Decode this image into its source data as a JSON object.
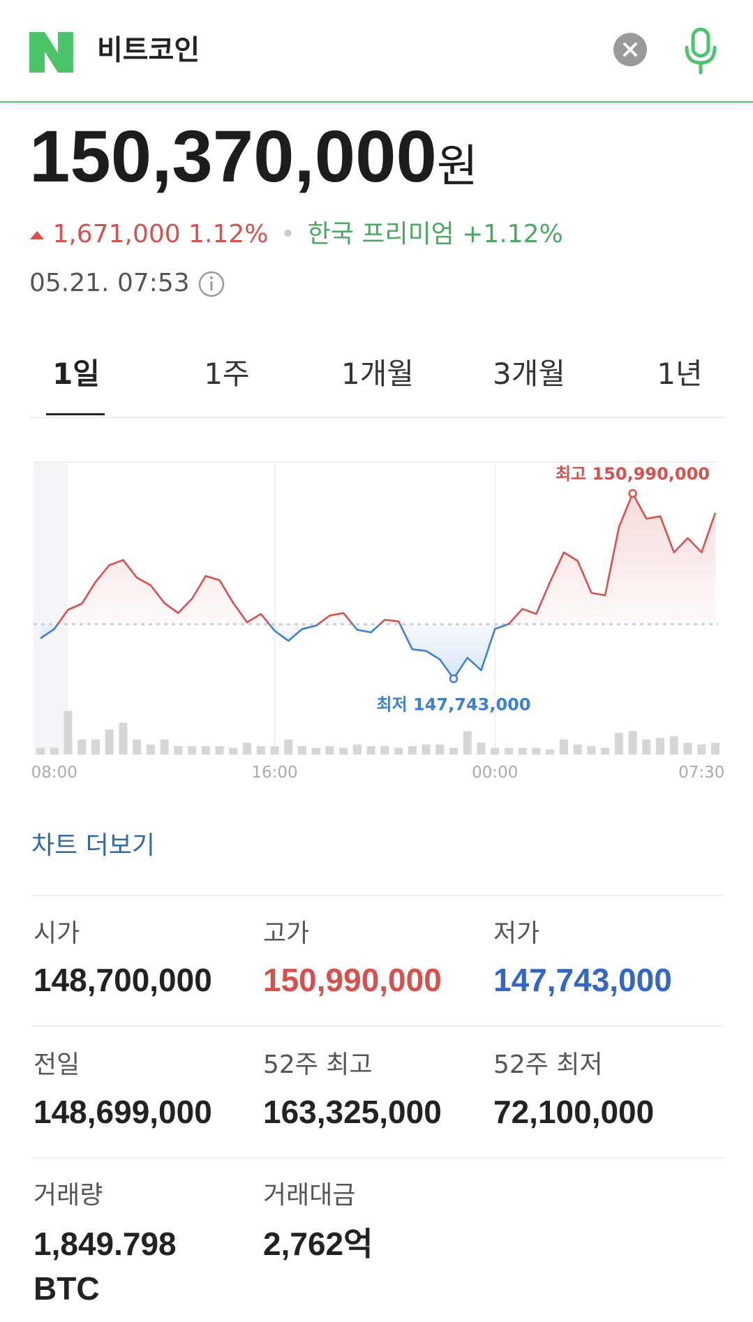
{
  "header": {
    "query": "비트코인"
  },
  "quote": {
    "price": "150,370,000",
    "unit": "원",
    "change": "1,671,000",
    "change_pct": "1.12%",
    "premium": "한국 프리미엄 +1.12%",
    "time": "05.21. 07:53"
  },
  "tabs": [
    "1일",
    "1주",
    "1개월",
    "3개월",
    "1년"
  ],
  "chart_data": {
    "type": "line",
    "categories": [
      null,
      "08:00",
      null,
      null,
      null,
      null,
      null,
      null,
      null,
      null,
      null,
      null,
      null,
      null,
      null,
      null,
      null,
      "16:00",
      null,
      null,
      null,
      null,
      null,
      null,
      null,
      null,
      null,
      null,
      null,
      null,
      null,
      null,
      null,
      "00:00",
      null,
      null,
      null,
      null,
      null,
      null,
      null,
      null,
      null,
      null,
      null,
      null,
      null,
      null,
      "07:30",
      null
    ],
    "values": [
      148451000,
      148614000,
      148953000,
      149057000,
      149440000,
      149735000,
      149824000,
      149514000,
      149381000,
      149071000,
      148894000,
      149145000,
      149544000,
      149470000,
      149071000,
      148732000,
      148879000,
      148584000,
      148407000,
      148614000,
      148673000,
      148850000,
      148894000,
      148599000,
      148555000,
      148776000,
      148747000,
      148260000,
      148230000,
      148082000,
      147743000,
      148112000,
      147891000,
      148614000,
      148702000,
      148968000,
      148879000,
      149440000,
      149957000,
      149809000,
      149248000,
      149204000,
      150400000,
      150990000,
      150547000,
      150591000,
      149957000,
      150208000,
      149957000,
      150651000
    ],
    "volumes": [
      20,
      20,
      130,
      45,
      45,
      75,
      95,
      45,
      30,
      45,
      25,
      25,
      25,
      25,
      20,
      35,
      25,
      25,
      45,
      25,
      20,
      25,
      20,
      30,
      25,
      25,
      20,
      25,
      30,
      30,
      20,
      70,
      35,
      20,
      20,
      20,
      20,
      15,
      45,
      30,
      25,
      20,
      65,
      70,
      45,
      50,
      55,
      35,
      30,
      35
    ],
    "baseline": 148699000,
    "ylim": [
      147100000,
      151540000
    ],
    "vlim": [
      0,
      150
    ],
    "high_label": "최고 150,990,000",
    "low_label": "최저 147,743,000",
    "up_color": "#d6504e",
    "down_color": "#3d7fd0",
    "volume_color": "#d6d6d6",
    "vgrid": true
  },
  "more_link": "차트 더보기",
  "stats": [
    [
      {
        "label": "시가",
        "value": "148,700,000"
      },
      {
        "label": "고가",
        "value": "150,990,000"
      },
      {
        "label": "저가",
        "value": "147,743,000"
      }
    ],
    [
      {
        "label": "전일",
        "value": "148,699,000"
      },
      {
        "label": "52주 최고",
        "value": "163,325,000"
      },
      {
        "label": "52주 최저",
        "value": "72,100,000"
      }
    ],
    [
      {
        "label": "거래량",
        "value": "1,849.798 BTC"
      },
      {
        "label": "거래대금",
        "value": "2,762억"
      }
    ]
  ]
}
